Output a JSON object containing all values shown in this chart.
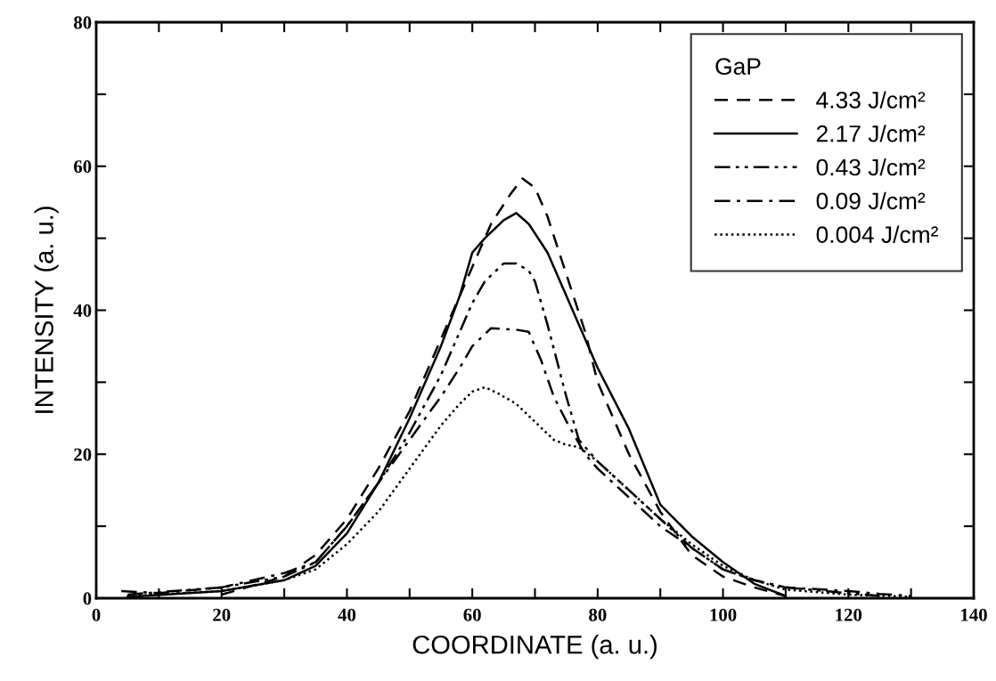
{
  "chart_data": {
    "type": "line",
    "xlabel": "COORDINATE (a. u.)",
    "ylabel": "INTENSITY (a. u.)",
    "legend_title": "GaP",
    "legend": "top right",
    "grid": false,
    "xlim": [
      0,
      140
    ],
    "ylim": [
      0,
      80
    ],
    "xticks": [
      0,
      {
        "value": 10,
        "label": null
      },
      20,
      {
        "value": 30,
        "label": null
      },
      40,
      {
        "value": 50,
        "label": null
      },
      60,
      {
        "value": 70,
        "label": null
      },
      80,
      {
        "value": 90,
        "label": null
      },
      100,
      {
        "value": 110,
        "label": null
      },
      120,
      {
        "value": 130,
        "label": null
      },
      140
    ],
    "yticks": [
      0,
      {
        "value": 10,
        "label": null
      },
      20,
      {
        "value": 30,
        "label": null
      },
      40,
      {
        "value": 50,
        "label": null
      },
      60,
      {
        "value": 70,
        "label": null
      },
      80
    ],
    "series": [
      {
        "name": "4.33 J/cm²",
        "color": "#000000",
        "line_style": "dashed",
        "x": [
          20,
          30,
          35,
          40,
          45,
          50,
          55,
          60,
          63,
          66,
          68,
          70,
          72,
          75,
          78,
          80,
          85,
          90,
          95,
          100,
          105,
          110
        ],
        "values": [
          0.5,
          3,
          6,
          11,
          18,
          26,
          36,
          46,
          52,
          56,
          58.3,
          57,
          53,
          45,
          37,
          30,
          20,
          12,
          6,
          3,
          1.5,
          0.3
        ]
      },
      {
        "name": "2.17 J/cm²",
        "color": "#000000",
        "line_style": "solid",
        "x": [
          5,
          20,
          30,
          35,
          40,
          45,
          50,
          55,
          58,
          60,
          62,
          65,
          67,
          69,
          72,
          75,
          78,
          80,
          85,
          90,
          95,
          100,
          105,
          110
        ],
        "values": [
          0.2,
          1,
          2.5,
          4.5,
          9,
          16,
          25,
          35,
          42,
          48,
          50,
          52.5,
          53.5,
          52,
          48,
          42,
          36,
          32,
          23.5,
          13,
          8.6,
          5,
          2,
          0.3
        ]
      },
      {
        "name": "0.43 J/cm²",
        "color": "#000000",
        "line_style": "dashdotdot",
        "x": [
          5,
          20,
          30,
          35,
          40,
          45,
          50,
          55,
          58,
          60,
          62,
          65,
          67,
          69,
          70,
          72,
          75,
          77,
          80,
          85,
          90,
          95,
          100,
          105,
          110,
          120,
          125
        ],
        "values": [
          0.5,
          1.5,
          3,
          5,
          10,
          16,
          23,
          31,
          37,
          41,
          44,
          46.5,
          46.5,
          45.5,
          44,
          38,
          28,
          22,
          19,
          15,
          11,
          7,
          4,
          2.5,
          1.5,
          0.7,
          0.3
        ]
      },
      {
        "name": "0.09 J/cm²",
        "color": "#000000",
        "line_style": "dashdot",
        "x": [
          4,
          10,
          20,
          30,
          35,
          40,
          45,
          50,
          55,
          58,
          60,
          63,
          67,
          69,
          71,
          73,
          75,
          78,
          80,
          85,
          90,
          95,
          100,
          105,
          110,
          120,
          125,
          130
        ],
        "values": [
          1,
          0.7,
          1.5,
          3.5,
          5,
          10,
          16,
          22,
          28,
          32,
          35,
          37.5,
          37.3,
          37,
          33,
          28,
          24.6,
          20,
          18,
          14,
          10,
          7,
          4,
          2.5,
          1.5,
          1,
          0.6,
          0.3
        ]
      },
      {
        "name": "0.004 J/cm²",
        "color": "#000000",
        "line_style": "dotted",
        "x": [
          5,
          20,
          30,
          35,
          40,
          45,
          50,
          55,
          58,
          60,
          62,
          64,
          67,
          70,
          73,
          75,
          77,
          80,
          85,
          90,
          95,
          100,
          105,
          110,
          120,
          130
        ],
        "values": [
          0.3,
          1,
          2.5,
          4,
          7.5,
          12,
          18,
          24,
          27,
          28.7,
          29.3,
          28.5,
          27,
          24.5,
          22,
          21.3,
          21,
          19,
          15,
          11,
          7.5,
          4.5,
          2.5,
          1.2,
          0.5,
          0.2
        ]
      }
    ]
  }
}
